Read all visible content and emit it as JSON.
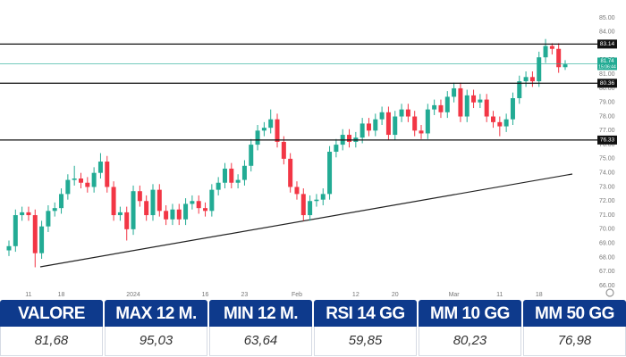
{
  "chart_data": {
    "type": "candlestick",
    "categories": [
      null,
      null,
      null,
      "11",
      null,
      null,
      null,
      null,
      "18",
      null,
      null,
      null,
      null,
      null,
      null,
      null,
      null,
      null,
      null,
      "2024",
      null,
      null,
      null,
      null,
      null,
      null,
      null,
      null,
      null,
      null,
      "16",
      null,
      null,
      null,
      null,
      null,
      "23",
      null,
      null,
      null,
      null,
      null,
      null,
      null,
      "Feb",
      null,
      null,
      null,
      null,
      null,
      null,
      null,
      null,
      "12",
      null,
      null,
      null,
      null,
      null,
      "20",
      null,
      null,
      null,
      null,
      null,
      null,
      null,
      null,
      "Mar",
      null,
      null,
      null,
      null,
      null,
      null,
      "11",
      null,
      null,
      null,
      null,
      null,
      "18",
      null,
      null,
      null,
      null
    ],
    "open": [
      68.5,
      68.8,
      71.0,
      71.2,
      71.0,
      68.3,
      70.2,
      71.3,
      71.5,
      72.5,
      73.5,
      73.6,
      73.3,
      73.0,
      74.0,
      74.8,
      73.0,
      71.0,
      71.2,
      70.0,
      72.7,
      72.0,
      71.0,
      72.8,
      71.3,
      70.7,
      71.4,
      70.7,
      71.8,
      72.0,
      71.5,
      71.3,
      72.8,
      73.3,
      74.3,
      73.3,
      73.5,
      74.5,
      76.0,
      77.0,
      77.2,
      77.8,
      76.2,
      75.0,
      73.0,
      72.5,
      71.0,
      72.0,
      72.1,
      72.5,
      75.5,
      76.0,
      76.7,
      76.2,
      76.5,
      77.5,
      77.0,
      77.8,
      78.3,
      76.7,
      78.0,
      78.5,
      78.0,
      77.0,
      76.8,
      78.5,
      78.8,
      78.3,
      79.4,
      80.0,
      78.0,
      79.5,
      79.0,
      79.2,
      78.0,
      77.6,
      77.3,
      77.8,
      79.3,
      80.5,
      80.8,
      80.5,
      82.2,
      83.0,
      82.8,
      81.5
    ],
    "high": [
      69.2,
      71.4,
      71.6,
      71.6,
      71.4,
      70.6,
      71.7,
      71.9,
      72.9,
      73.9,
      74.5,
      74.0,
      73.7,
      74.4,
      75.4,
      75.2,
      73.4,
      71.6,
      71.6,
      73.1,
      73.1,
      72.4,
      73.2,
      73.2,
      71.7,
      71.8,
      71.8,
      72.2,
      72.4,
      72.4,
      71.9,
      73.2,
      73.7,
      74.7,
      74.7,
      73.9,
      74.9,
      76.4,
      77.4,
      77.6,
      78.5,
      78.2,
      76.6,
      75.4,
      73.4,
      72.9,
      72.4,
      72.5,
      72.9,
      75.9,
      76.4,
      77.1,
      77.1,
      76.9,
      77.9,
      77.9,
      78.2,
      78.7,
      78.7,
      78.4,
      78.9,
      78.9,
      78.4,
      77.4,
      78.9,
      79.2,
      79.2,
      79.8,
      80.4,
      80.4,
      79.9,
      79.9,
      79.6,
      79.6,
      78.4,
      78.0,
      78.2,
      79.7,
      80.9,
      81.2,
      81.2,
      82.6,
      83.5,
      83.2,
      83.2,
      82.0
    ],
    "low": [
      68.1,
      68.4,
      70.6,
      70.6,
      67.3,
      67.9,
      69.8,
      70.9,
      71.1,
      72.1,
      73.1,
      72.9,
      72.6,
      72.6,
      73.6,
      72.6,
      70.6,
      70.6,
      69.2,
      69.6,
      71.6,
      70.6,
      70.6,
      70.9,
      70.3,
      70.3,
      70.3,
      70.3,
      71.4,
      71.1,
      70.9,
      70.9,
      72.4,
      72.9,
      72.9,
      72.9,
      73.1,
      74.1,
      75.6,
      76.6,
      76.8,
      75.8,
      74.6,
      72.6,
      72.1,
      70.6,
      70.6,
      71.6,
      71.7,
      72.1,
      75.1,
      75.6,
      75.8,
      75.8,
      76.1,
      76.6,
      76.6,
      77.4,
      76.3,
      76.3,
      77.6,
      77.6,
      76.6,
      76.4,
      76.4,
      78.1,
      77.9,
      77.9,
      79.0,
      77.6,
      77.6,
      78.6,
      78.6,
      77.6,
      77.2,
      76.6,
      76.9,
      77.4,
      78.9,
      80.1,
      80.1,
      80.1,
      81.8,
      82.4,
      81.1,
      81.3
    ],
    "close": [
      68.8,
      71.0,
      71.2,
      71.0,
      68.3,
      70.2,
      71.3,
      71.5,
      72.5,
      73.5,
      73.6,
      73.3,
      73.0,
      74.0,
      74.8,
      73.0,
      71.0,
      71.2,
      70.0,
      72.7,
      72.0,
      71.0,
      72.8,
      71.3,
      70.7,
      71.4,
      70.7,
      71.8,
      72.0,
      71.5,
      71.3,
      72.8,
      73.3,
      74.3,
      73.3,
      73.5,
      74.5,
      76.0,
      77.0,
      77.2,
      77.8,
      76.2,
      75.0,
      73.0,
      72.5,
      71.0,
      72.0,
      72.1,
      72.5,
      75.5,
      76.0,
      76.7,
      76.2,
      76.5,
      77.5,
      77.0,
      77.8,
      78.3,
      76.7,
      78.0,
      78.5,
      78.0,
      77.0,
      76.8,
      78.5,
      78.8,
      78.3,
      79.4,
      80.0,
      78.0,
      79.5,
      79.0,
      79.2,
      78.0,
      77.6,
      77.3,
      77.8,
      79.3,
      80.5,
      80.8,
      80.5,
      82.2,
      83.0,
      82.8,
      81.5,
      81.7
    ],
    "up_color": "#22ab94",
    "down_color": "#f23645",
    "levels": [
      83.14,
      80.36,
      76.33
    ],
    "level_color": "#111111",
    "last_price": {
      "value": 81.74,
      "time": "15:06:44"
    },
    "last_price_color": "#22ab94",
    "ylim": [
      66,
      85
    ],
    "yticks": [
      {
        "value": 66,
        "label": "66.00"
      },
      {
        "value": 67,
        "label": "67.00"
      },
      {
        "value": 68,
        "label": "68.00"
      },
      {
        "value": 69,
        "label": "69.00"
      },
      {
        "value": 70,
        "label": "70.00"
      },
      {
        "value": 71,
        "label": "71.00"
      },
      {
        "value": 72,
        "label": "72.00"
      },
      {
        "value": 73,
        "label": "73.00"
      },
      {
        "value": 74,
        "label": "74.00"
      },
      {
        "value": 75,
        "label": "75.00"
      },
      {
        "value": 76,
        "label": "76.00"
      },
      {
        "value": 77,
        "label": "77.00"
      },
      {
        "value": 78,
        "label": "78.00"
      },
      {
        "value": 79,
        "label": "79.00"
      },
      {
        "value": 80,
        "label": "80.00"
      },
      {
        "value": 81,
        "label": "81.00"
      },
      {
        "value": 82,
        "label": "82.00"
      },
      {
        "value": 83,
        "label": "83.00"
      },
      {
        "value": 84,
        "label": "84.00"
      },
      {
        "value": 85,
        "label": "85.00"
      }
    ]
  },
  "table": {
    "headers": [
      "VALORE",
      "MAX 12 M.",
      "MIN 12 M.",
      "RSI 14 GG",
      "MM 10 GG",
      "MM 50 GG"
    ],
    "values": [
      "81,68",
      "95,03",
      "63,64",
      "59,85",
      "80,23",
      "76,98"
    ]
  }
}
